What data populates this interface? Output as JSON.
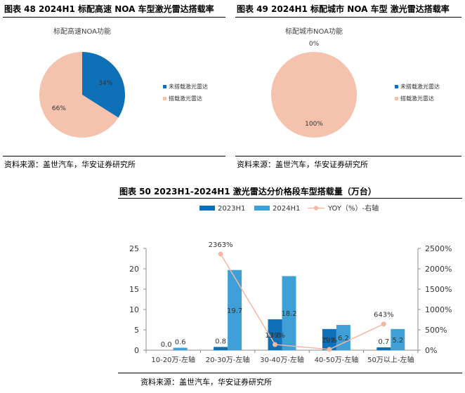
{
  "colors": {
    "dark_blue": "#0e71b8",
    "light_blue": "#3ea0d6",
    "salmon": "#f5c2ae",
    "yoy_line": "#f2b8a2",
    "axis": "#8c8c8c"
  },
  "fig48": {
    "title": "图表 48 2024H1 标配高速 NOA 车型激光雷达搭载率",
    "source": "资料来源：盖世汽车，华安证券研究所"
  },
  "fig49": {
    "title": "图表 49 2024H1  标配城市 NOA 车型 激光雷达搭载率",
    "source": "资料来源：盖世汽车，华安证券研究所"
  },
  "fig50": {
    "title": "图表 50 2023H1-2024H1 激光雷达分价格段车型搭载量（万台）",
    "source": "资料来源：盖世汽车，华安证券研究所"
  },
  "chart_data": [
    {
      "type": "pie",
      "title": "标配高速NOA功能",
      "labels": [
        "未搭载激光雷达",
        "搭载激光雷达"
      ],
      "values": [
        34,
        66
      ],
      "value_labels": [
        "34%",
        "66%"
      ],
      "colors": [
        "#0e71b8",
        "#f5c2ae"
      ],
      "legend_position": "right"
    },
    {
      "type": "pie",
      "title": "标配城市NOA功能",
      "labels": [
        "未搭载激光雷达",
        "搭载激光雷达"
      ],
      "values": [
        0,
        100
      ],
      "value_labels": [
        "0%",
        "100%"
      ],
      "colors": [
        "#0e71b8",
        "#f5c2ae"
      ],
      "legend_position": "right"
    },
    {
      "type": "bar",
      "categories": [
        "10-20万-左轴",
        "20-30万-左轴",
        "30-40万-左轴",
        "40-50万-左轴",
        "50万以上-左轴"
      ],
      "series": [
        {
          "name": "2023H1",
          "values": [
            0.0,
            0.8,
            7.6,
            5.2,
            0.7
          ],
          "labels": [
            "0.0",
            "0.8",
            "7.6",
            "5.2",
            "0.7"
          ],
          "color": "#0e71b8",
          "axis": "left"
        },
        {
          "name": "2024H1",
          "values": [
            0.6,
            19.7,
            18.2,
            6.2,
            5.2
          ],
          "labels": [
            "0.6",
            "19.7",
            "18.2",
            "6.2",
            "5.2"
          ],
          "color": "#3ea0d6",
          "axis": "left"
        },
        {
          "name": "YOY（%）-右轴",
          "type": "line",
          "values": [
            null,
            2363,
            139,
            19,
            643
          ],
          "labels": [
            "",
            "2363%",
            "139%",
            "19%",
            "643%"
          ],
          "color": "#f2b8a2",
          "axis": "right"
        }
      ],
      "y_left": {
        "min": 0,
        "max": 25,
        "ticks": [
          "0",
          "5",
          "10",
          "15",
          "20",
          "25"
        ]
      },
      "y_right": {
        "min": 0,
        "max": 2500,
        "ticks": [
          "0%",
          "500%",
          "1000%",
          "1500%",
          "2000%",
          "2500%"
        ]
      },
      "grid": false,
      "legend_position": "top"
    }
  ]
}
